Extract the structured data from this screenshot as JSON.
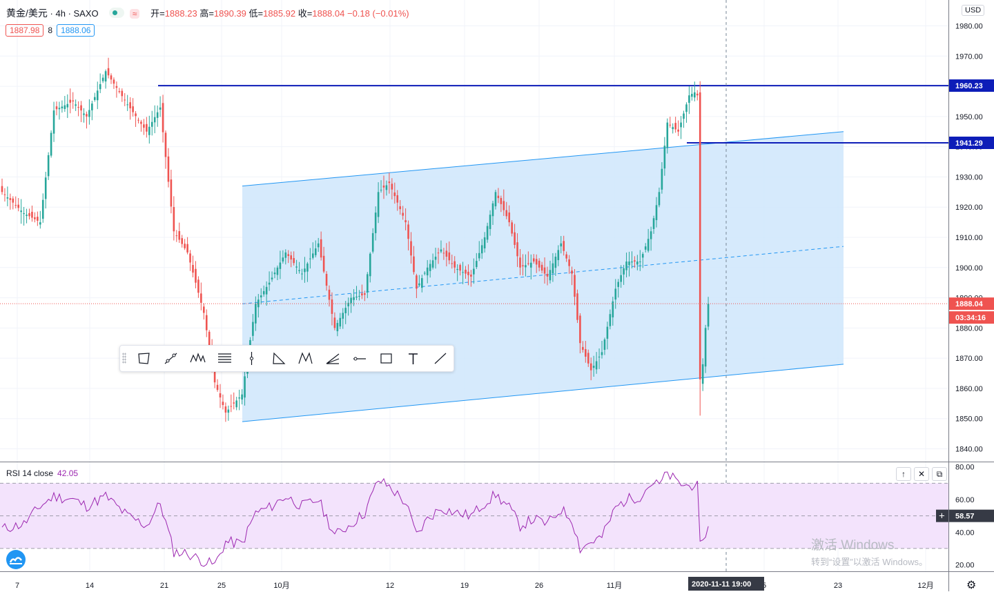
{
  "header": {
    "symbol": "黄金/美元",
    "interval": "4h",
    "source": "SAXO",
    "indicator_icon": "approx-sign-icon",
    "open_label": "开=",
    "open": "1888.23",
    "high_label": "高=",
    "high": "1890.39",
    "low_label": "低=",
    "low": "1885.92",
    "close_label": "收=",
    "close": "1888.04",
    "change": "−0.18 (−0.01%)"
  },
  "bidask": {
    "bid": "1887.98",
    "spread": "8",
    "ask": "1888.06"
  },
  "currency_button": "USD",
  "colors": {
    "up": "#26a69a",
    "down": "#ef5350",
    "hline": "#0d1db8",
    "channel": "#2196f3",
    "channel_fill": "#cfe6fb",
    "rsi": "#9c27b0",
    "rsi_band": "#f3e3fc"
  },
  "price_labels": {
    "level1": "1960.23",
    "level2": "1941.29",
    "last": "1888.04",
    "countdown": "03:34:16"
  },
  "rsi": {
    "title": "RSI 14 close",
    "value": "42.05",
    "cursor_value": "58.57",
    "upper": 70,
    "lower": 30
  },
  "pane_buttons": [
    "arrow-up-icon",
    "close-icon",
    "maximize-icon"
  ],
  "crosshair_date": "2020-11-11   19:00",
  "drawing_toolbar": [
    "polygon-icon",
    "trend-line-icon",
    "pattern-icon",
    "fib-lines-icon",
    "vertical-line-icon",
    "triangle-icon",
    "xabcd-icon",
    "fan-icon",
    "horizontal-ray-icon",
    "rectangle-icon",
    "text-icon",
    "ray-icon"
  ],
  "watermark": {
    "line1": "激活 Windows",
    "line2": "转到“设置”以激活 Windows。"
  },
  "chart_data": {
    "type": "candlestick",
    "xaxis_ticks": [
      "7",
      "14",
      "21",
      "25",
      "10月",
      "12",
      "19",
      "26",
      "11月",
      "5",
      "23",
      "12月"
    ],
    "price_ticks": [
      "1980.00",
      "1970.00",
      "1960.00",
      "1950.00",
      "1940.00",
      "1930.00",
      "1920.00",
      "1910.00",
      "1900.00",
      "1890.00",
      "1880.00",
      "1870.00",
      "1860.00",
      "1850.00",
      "1840.00"
    ],
    "ylim": [
      1836,
      1984
    ],
    "rsi_ticks": [
      "80.00",
      "60.00",
      "40.00",
      "20.00"
    ],
    "rsi_ylim": [
      16,
      82
    ],
    "ohlc_anchors": [
      {
        "i": 0,
        "close": 1925
      },
      {
        "i": 8,
        "close": 1918
      },
      {
        "i": 14,
        "close": 1915
      },
      {
        "i": 19,
        "close": 1952
      },
      {
        "i": 26,
        "close": 1955
      },
      {
        "i": 31,
        "close": 1950
      },
      {
        "i": 38,
        "close": 1965
      },
      {
        "i": 46,
        "close": 1954
      },
      {
        "i": 53,
        "close": 1945
      },
      {
        "i": 58,
        "close": 1953
      },
      {
        "i": 63,
        "close": 1912
      },
      {
        "i": 68,
        "close": 1905
      },
      {
        "i": 74,
        "close": 1885
      },
      {
        "i": 78,
        "close": 1862
      },
      {
        "i": 82,
        "close": 1852
      },
      {
        "i": 88,
        "close": 1858
      },
      {
        "i": 93,
        "close": 1888
      },
      {
        "i": 98,
        "close": 1895
      },
      {
        "i": 104,
        "close": 1905
      },
      {
        "i": 110,
        "close": 1898
      },
      {
        "i": 116,
        "close": 1908
      },
      {
        "i": 122,
        "close": 1880
      },
      {
        "i": 128,
        "close": 1890
      },
      {
        "i": 133,
        "close": 1891
      },
      {
        "i": 138,
        "close": 1925
      },
      {
        "i": 142,
        "close": 1928
      },
      {
        "i": 148,
        "close": 1915
      },
      {
        "i": 152,
        "close": 1893
      },
      {
        "i": 156,
        "close": 1900
      },
      {
        "i": 161,
        "close": 1906
      },
      {
        "i": 166,
        "close": 1900
      },
      {
        "i": 172,
        "close": 1897
      },
      {
        "i": 177,
        "close": 1910
      },
      {
        "i": 181,
        "close": 1925
      },
      {
        "i": 186,
        "close": 1915
      },
      {
        "i": 190,
        "close": 1900
      },
      {
        "i": 195,
        "close": 1902
      },
      {
        "i": 200,
        "close": 1897
      },
      {
        "i": 205,
        "close": 1908
      },
      {
        "i": 209,
        "close": 1898
      },
      {
        "i": 212,
        "close": 1875
      },
      {
        "i": 216,
        "close": 1866
      },
      {
        "i": 220,
        "close": 1872
      },
      {
        "i": 225,
        "close": 1893
      },
      {
        "i": 229,
        "close": 1902
      },
      {
        "i": 234,
        "close": 1902
      },
      {
        "i": 238,
        "close": 1912
      },
      {
        "i": 241,
        "close": 1925
      },
      {
        "i": 244,
        "close": 1948
      },
      {
        "i": 248,
        "close": 1945
      },
      {
        "i": 252,
        "close": 1957
      },
      {
        "i": 254,
        "close": 1958
      },
      {
        "i": 255,
        "close": 1957
      },
      {
        "i": 256,
        "close": 1863
      },
      {
        "i": 257,
        "close": 1868
      },
      {
        "i": 258,
        "close": 1880
      },
      {
        "i": 259,
        "close": 1888
      }
    ],
    "rsi_anchors": [
      {
        "i": 0,
        "v": 42
      },
      {
        "i": 8,
        "v": 45
      },
      {
        "i": 14,
        "v": 56
      },
      {
        "i": 19,
        "v": 62
      },
      {
        "i": 26,
        "v": 60
      },
      {
        "i": 31,
        "v": 56
      },
      {
        "i": 38,
        "v": 62
      },
      {
        "i": 46,
        "v": 50
      },
      {
        "i": 53,
        "v": 44
      },
      {
        "i": 58,
        "v": 58
      },
      {
        "i": 63,
        "v": 28
      },
      {
        "i": 68,
        "v": 27
      },
      {
        "i": 74,
        "v": 22
      },
      {
        "i": 78,
        "v": 20
      },
      {
        "i": 82,
        "v": 34
      },
      {
        "i": 88,
        "v": 33
      },
      {
        "i": 93,
        "v": 52
      },
      {
        "i": 98,
        "v": 55
      },
      {
        "i": 104,
        "v": 62
      },
      {
        "i": 110,
        "v": 56
      },
      {
        "i": 116,
        "v": 60
      },
      {
        "i": 122,
        "v": 38
      },
      {
        "i": 128,
        "v": 45
      },
      {
        "i": 133,
        "v": 52
      },
      {
        "i": 138,
        "v": 72
      },
      {
        "i": 142,
        "v": 68
      },
      {
        "i": 148,
        "v": 58
      },
      {
        "i": 152,
        "v": 38
      },
      {
        "i": 156,
        "v": 48
      },
      {
        "i": 161,
        "v": 55
      },
      {
        "i": 166,
        "v": 52
      },
      {
        "i": 172,
        "v": 50
      },
      {
        "i": 177,
        "v": 58
      },
      {
        "i": 181,
        "v": 63
      },
      {
        "i": 186,
        "v": 55
      },
      {
        "i": 190,
        "v": 44
      },
      {
        "i": 195,
        "v": 48
      },
      {
        "i": 200,
        "v": 45
      },
      {
        "i": 205,
        "v": 54
      },
      {
        "i": 209,
        "v": 48
      },
      {
        "i": 212,
        "v": 30
      },
      {
        "i": 216,
        "v": 34
      },
      {
        "i": 220,
        "v": 37
      },
      {
        "i": 225,
        "v": 55
      },
      {
        "i": 229,
        "v": 60
      },
      {
        "i": 234,
        "v": 62
      },
      {
        "i": 238,
        "v": 70
      },
      {
        "i": 241,
        "v": 69
      },
      {
        "i": 244,
        "v": 76
      },
      {
        "i": 248,
        "v": 70
      },
      {
        "i": 252,
        "v": 68
      },
      {
        "i": 254,
        "v": 70
      },
      {
        "i": 255,
        "v": 68
      },
      {
        "i": 256,
        "v": 31
      },
      {
        "i": 257,
        "v": 32
      },
      {
        "i": 258,
        "v": 40
      },
      {
        "i": 259,
        "v": 42
      }
    ],
    "horizontal_levels": [
      1960.23,
      1941.29
    ],
    "channel": {
      "upper_start": 1927,
      "upper_end": 1945,
      "lower_start": 1849,
      "lower_end": 1868,
      "mid_start": 1888,
      "mid_end": 1907
    }
  }
}
